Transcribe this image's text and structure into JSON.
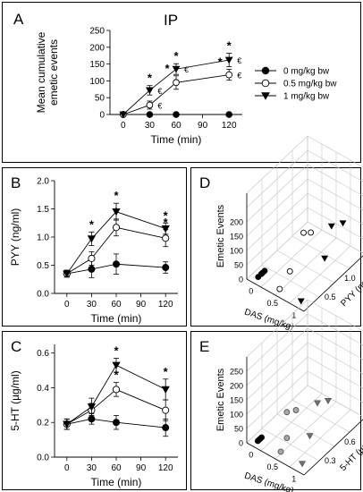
{
  "chart_data": [
    {
      "panel": "A",
      "type": "line",
      "title": "IP",
      "xlabel": "Time (min)",
      "ylabel": "Mean cumulative\nemetic events",
      "x": [
        0,
        30,
        60,
        120
      ],
      "xticks": [
        "0",
        "30",
        "60",
        "90",
        "120"
      ],
      "yticks": [
        "0",
        "50",
        "100",
        "150",
        "200",
        "250"
      ],
      "xlim": [
        -15,
        135
      ],
      "ylim": [
        0,
        250
      ],
      "legend_position": "right",
      "series": [
        {
          "name": "0 mg/kg bw",
          "marker": "filled-circle",
          "values": [
            0,
            0,
            0,
            0
          ],
          "err": [
            0,
            0,
            0,
            0
          ],
          "stars": [
            false,
            false,
            false,
            false
          ],
          "euro": [
            false,
            false,
            false,
            false
          ]
        },
        {
          "name": "0.5 mg/kg bw",
          "marker": "open-circle",
          "values": [
            0,
            28,
            95,
            118
          ],
          "err": [
            0,
            12,
            20,
            16
          ],
          "stars": [
            false,
            false,
            true,
            true
          ],
          "euro": [
            false,
            true,
            false,
            true
          ]
        },
        {
          "name": "1 mg/kg bw",
          "marker": "filled-triangle-down",
          "values": [
            0,
            72,
            135,
            162
          ],
          "err": [
            0,
            14,
            16,
            20
          ],
          "stars": [
            false,
            true,
            true,
            true
          ],
          "euro": [
            false,
            true,
            true,
            true
          ]
        }
      ]
    },
    {
      "panel": "B",
      "type": "line",
      "xlabel": "Time (min)",
      "ylabel": "PYY (ng/ml)",
      "x": [
        0,
        30,
        60,
        120
      ],
      "xticks": [
        "0",
        "30",
        "60",
        "90",
        "120"
      ],
      "yticks": [
        "0.0",
        "0.5",
        "1.0",
        "1.5",
        "2.0"
      ],
      "xlim": [
        -15,
        135
      ],
      "ylim": [
        0,
        2.0
      ],
      "series": [
        {
          "marker": "filled-circle",
          "values": [
            0.35,
            0.43,
            0.52,
            0.46
          ],
          "err": [
            0.06,
            0.15,
            0.18,
            0.1
          ],
          "stars": [
            false,
            false,
            false,
            false
          ]
        },
        {
          "marker": "open-circle",
          "values": [
            0.35,
            0.62,
            1.17,
            0.98
          ],
          "err": [
            0.06,
            0.12,
            0.15,
            0.15
          ],
          "stars": [
            false,
            false,
            true,
            true
          ]
        },
        {
          "marker": "filled-triangle-down",
          "values": [
            0.35,
            0.97,
            1.45,
            1.15
          ],
          "err": [
            0.06,
            0.12,
            0.15,
            0.1
          ],
          "stars": [
            false,
            true,
            true,
            true
          ]
        }
      ]
    },
    {
      "panel": "C",
      "type": "line",
      "xlabel": "Time (min)",
      "ylabel": "5-HT (µg/ml)",
      "x": [
        0,
        30,
        60,
        120
      ],
      "xticks": [
        "0",
        "30",
        "60",
        "90",
        "120"
      ],
      "yticks": [
        "0.0",
        "0.2",
        "0.4",
        "0.6"
      ],
      "xlim": [
        -15,
        135
      ],
      "ylim": [
        0,
        0.65
      ],
      "series": [
        {
          "marker": "filled-circle",
          "values": [
            0.19,
            0.22,
            0.2,
            0.17
          ],
          "err": [
            0.03,
            0.03,
            0.04,
            0.05
          ],
          "stars": [
            false,
            false,
            false,
            false
          ]
        },
        {
          "marker": "open-circle",
          "values": [
            0.19,
            0.27,
            0.39,
            0.27
          ],
          "err": [
            0.03,
            0.04,
            0.04,
            0.06
          ],
          "stars": [
            false,
            false,
            true,
            false
          ]
        },
        {
          "marker": "filled-triangle-down",
          "values": [
            0.19,
            0.29,
            0.53,
            0.39
          ],
          "err": [
            0.03,
            0.05,
            0.04,
            0.06
          ],
          "stars": [
            false,
            false,
            true,
            true
          ]
        }
      ]
    },
    {
      "panel": "D",
      "type": "scatter",
      "zlabel": "Emetic Events",
      "xlabel": "DAS (mg/kg)",
      "ylabel": "PYY (ng/ml)",
      "zticks": [
        "0",
        "50",
        "100",
        "150",
        "200"
      ],
      "xticks": [
        "0",
        "0.5",
        "1"
      ],
      "yticks": [
        "0.5",
        "1.0",
        "1.5"
      ],
      "groups": [
        {
          "marker": "filled-circle",
          "points": [
            [
              0,
              0.35,
              0
            ],
            [
              0,
              0.43,
              0
            ],
            [
              0,
              0.52,
              0
            ],
            [
              0,
              0.46,
              0
            ]
          ]
        },
        {
          "marker": "open-circle",
          "points": [
            [
              0.5,
              0.35,
              0
            ],
            [
              0.5,
              0.62,
              28
            ],
            [
              0.5,
              1.17,
              95
            ],
            [
              0.5,
              0.98,
              118
            ]
          ]
        },
        {
          "marker": "filled-triangle-down",
          "points": [
            [
              1,
              0.35,
              0
            ],
            [
              1,
              0.97,
              72
            ],
            [
              1,
              1.45,
              135
            ],
            [
              1,
              1.15,
              162
            ]
          ]
        }
      ]
    },
    {
      "panel": "E",
      "type": "scatter",
      "zlabel": "Emetic Events",
      "xlabel": "DAS (mg/kg)",
      "ylabel": "5-HT (µg/ml)",
      "zticks": [
        "0",
        "50",
        "100",
        "150",
        "200",
        "250"
      ],
      "xticks": [
        "0",
        "0.5",
        "1"
      ],
      "yticks": [
        "0.3",
        "0.6",
        "0.9"
      ],
      "groups": [
        {
          "marker": "filled-circle",
          "points": [
            [
              0,
              0.19,
              0
            ],
            [
              0,
              0.22,
              0
            ],
            [
              0,
              0.2,
              0
            ],
            [
              0,
              0.17,
              0
            ]
          ]
        },
        {
          "marker": "open-circle",
          "points": [
            [
              0.5,
              0.19,
              0
            ],
            [
              0.5,
              0.27,
              28
            ],
            [
              0.5,
              0.39,
              95
            ],
            [
              0.5,
              0.27,
              118
            ]
          ]
        },
        {
          "marker": "filled-triangle-down",
          "points": [
            [
              1,
              0.19,
              0
            ],
            [
              1,
              0.29,
              72
            ],
            [
              1,
              0.53,
              135
            ],
            [
              1,
              0.39,
              162
            ]
          ]
        }
      ]
    }
  ],
  "colors": {
    "triangle_gray_e": "#707070",
    "circle_gray_e": "#a8a8a8",
    "open_circle_gray_d": "#888888"
  }
}
